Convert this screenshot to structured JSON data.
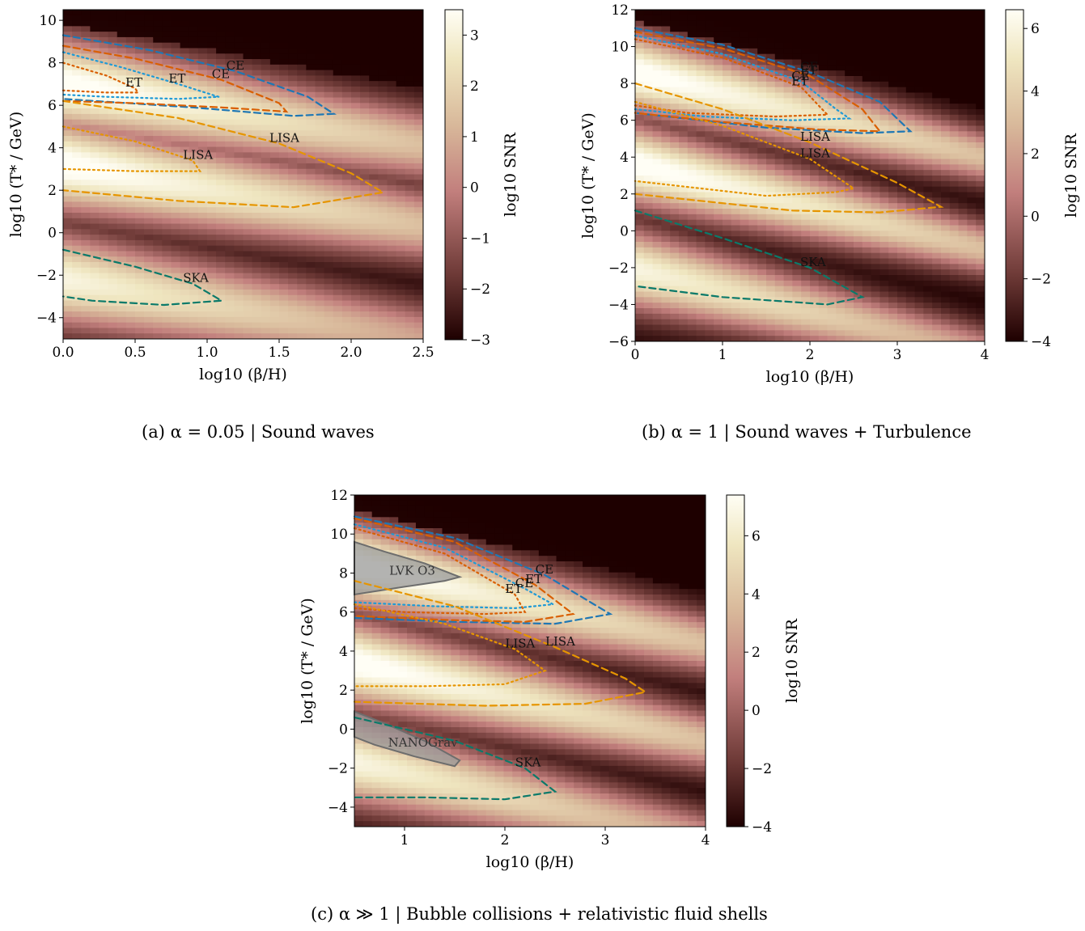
{
  "captions": [
    "(a) α = 0.05 | Sound waves",
    "(b) α = 1 | Sound waves + Turbulence",
    "(c) α ≫ 1 | Bubble collisions + relativistic fluid shells"
  ],
  "colors": {
    "CE": "#1f77b4",
    "ET": "#d95f02",
    "ET_dotted": "#1f9ad6",
    "LISA": "#e69500",
    "SKA": "#0b7a6a",
    "PTA": "#7f7f7f"
  },
  "chart_data": [
    {
      "type": "heatmap",
      "title": "",
      "xlabel": "log10 (β/H)",
      "ylabel": "log10 (T* / GeV)",
      "colorbar_label": "log10 SNR",
      "xlim": [
        0,
        2.5
      ],
      "ylim": [
        -5,
        10.5
      ],
      "xticks": [
        "0.0",
        "0.5",
        "1.0",
        "1.5",
        "2.0",
        "2.5"
      ],
      "yticks": [
        "−4",
        "−2",
        "0",
        "2",
        "4",
        "6",
        "8",
        "10"
      ],
      "clim": [
        -3,
        3.5
      ],
      "cbticks": [
        "−3",
        "−2",
        "−1",
        "0",
        "1",
        "2",
        "3"
      ],
      "band_centers": [
        7.0,
        3.2,
        -2.2
      ],
      "contours": [
        {
          "label": "CE",
          "style": "dashed",
          "color": "CE",
          "points": [
            [
              0,
              9.3
            ],
            [
              0.6,
              8.6
            ],
            [
              1.2,
              7.6
            ],
            [
              1.7,
              6.4
            ],
            [
              1.88,
              5.6
            ],
            [
              1.6,
              5.5
            ],
            [
              0.9,
              5.9
            ],
            [
              0,
              6.3
            ]
          ]
        },
        {
          "label": "CE",
          "style": "dashed",
          "color": "ET",
          "points": [
            [
              0,
              8.8
            ],
            [
              0.5,
              8.2
            ],
            [
              1.1,
              7.2
            ],
            [
              1.5,
              6.1
            ],
            [
              1.55,
              5.7
            ],
            [
              1.1,
              5.9
            ],
            [
              0.5,
              6.1
            ],
            [
              0,
              6.2
            ]
          ]
        },
        {
          "label": "ET",
          "style": "dotted",
          "color": "ET_dotted",
          "points": [
            [
              0,
              8.5
            ],
            [
              0.4,
              7.8
            ],
            [
              0.8,
              7.0
            ],
            [
              1.08,
              6.4
            ],
            [
              0.8,
              6.3
            ],
            [
              0.3,
              6.4
            ],
            [
              0,
              6.5
            ]
          ]
        },
        {
          "label": "ET",
          "style": "dotted",
          "color": "ET",
          "points": [
            [
              0,
              8.0
            ],
            [
              0.3,
              7.4
            ],
            [
              0.5,
              6.8
            ],
            [
              0.52,
              6.6
            ],
            [
              0.3,
              6.6
            ],
            [
              0,
              6.7
            ]
          ]
        },
        {
          "label": "LISA",
          "style": "dashed",
          "color": "LISA",
          "points": [
            [
              0,
              6.2
            ],
            [
              0.8,
              5.4
            ],
            [
              1.5,
              4.2
            ],
            [
              2.0,
              2.8
            ],
            [
              2.22,
              1.9
            ],
            [
              1.6,
              1.2
            ],
            [
              0.8,
              1.5
            ],
            [
              0,
              2.0
            ]
          ]
        },
        {
          "label": "LISA",
          "style": "dotted",
          "color": "LISA",
          "points": [
            [
              0,
              5.0
            ],
            [
              0.5,
              4.3
            ],
            [
              0.9,
              3.4
            ],
            [
              0.95,
              2.9
            ],
            [
              0.5,
              2.9
            ],
            [
              0,
              3.0
            ]
          ]
        },
        {
          "label": "SKA",
          "style": "dashed",
          "color": "SKA",
          "points": [
            [
              0,
              -0.8
            ],
            [
              0.5,
              -1.6
            ],
            [
              0.9,
              -2.4
            ],
            [
              1.1,
              -3.2
            ],
            [
              0.7,
              -3.4
            ],
            [
              0.2,
              -3.2
            ],
            [
              0,
              -3.0
            ]
          ]
        }
      ],
      "shaded_regions": []
    },
    {
      "type": "heatmap",
      "title": "",
      "xlabel": "log10 (β/H)",
      "ylabel": "log10 (T* / GeV)",
      "colorbar_label": "log10 SNR",
      "xlim": [
        0,
        4
      ],
      "ylim": [
        -6,
        12
      ],
      "xticks": [
        "0",
        "1",
        "2",
        "3",
        "4"
      ],
      "yticks": [
        "−6",
        "−4",
        "−2",
        "0",
        "2",
        "4",
        "6",
        "8",
        "10",
        "12"
      ],
      "clim": [
        -4,
        6.6
      ],
      "cbticks": [
        "−4",
        "−2",
        "0",
        "2",
        "4",
        "6"
      ],
      "band_centers": [
        8.6,
        3.6,
        -2.1
      ],
      "contours": [
        {
          "label": "CE",
          "style": "dashed",
          "color": "CE",
          "points": [
            [
              0,
              11.0
            ],
            [
              1,
              10.1
            ],
            [
              2,
              8.6
            ],
            [
              2.8,
              7.0
            ],
            [
              3.15,
              5.4
            ],
            [
              2.6,
              5.3
            ],
            [
              1.5,
              5.6
            ],
            [
              0,
              6.4
            ]
          ]
        },
        {
          "label": "ET",
          "style": "dashed",
          "color": "ET",
          "points": [
            [
              0,
              10.8
            ],
            [
              1,
              9.9
            ],
            [
              2,
              8.4
            ],
            [
              2.6,
              6.6
            ],
            [
              2.8,
              5.4
            ],
            [
              2.1,
              5.5
            ],
            [
              1,
              5.9
            ],
            [
              0,
              6.4
            ]
          ]
        },
        {
          "label": "CE",
          "style": "dotted",
          "color": "ET_dotted",
          "points": [
            [
              0,
              10.6
            ],
            [
              1,
              9.6
            ],
            [
              1.9,
              8.1
            ],
            [
              2.3,
              6.6
            ],
            [
              2.45,
              6.1
            ],
            [
              1.8,
              6.0
            ],
            [
              0.8,
              6.2
            ],
            [
              0,
              6.6
            ]
          ]
        },
        {
          "label": "ET",
          "style": "dotted",
          "color": "ET",
          "points": [
            [
              0,
              10.4
            ],
            [
              1,
              9.4
            ],
            [
              1.9,
              7.8
            ],
            [
              2.2,
              6.3
            ],
            [
              1.6,
              6.2
            ],
            [
              0.6,
              6.4
            ],
            [
              0,
              6.8
            ]
          ]
        },
        {
          "label": "LISA",
          "style": "dashed",
          "color": "LISA",
          "points": [
            [
              0,
              8.0
            ],
            [
              1,
              6.6
            ],
            [
              2,
              4.8
            ],
            [
              3,
              2.6
            ],
            [
              3.5,
              1.3
            ],
            [
              2.8,
              1.0
            ],
            [
              1.8,
              1.1
            ],
            [
              0,
              2.0
            ]
          ]
        },
        {
          "label": "LISA",
          "style": "dotted",
          "color": "LISA",
          "points": [
            [
              0,
              7.0
            ],
            [
              1,
              5.7
            ],
            [
              2,
              3.9
            ],
            [
              2.5,
              2.3
            ],
            [
              2.3,
              2.1
            ],
            [
              1.5,
              1.9
            ],
            [
              0,
              2.7
            ]
          ]
        },
        {
          "label": "SKA",
          "style": "dashed",
          "color": "SKA",
          "points": [
            [
              0,
              1.1
            ],
            [
              1,
              -0.4
            ],
            [
              2,
              -2.0
            ],
            [
              2.6,
              -3.6
            ],
            [
              2.2,
              -4.0
            ],
            [
              1.0,
              -3.6
            ],
            [
              0,
              -3.0
            ]
          ]
        }
      ],
      "shaded_regions": []
    },
    {
      "type": "heatmap",
      "title": "",
      "xlabel": "log10 (β/H)",
      "ylabel": "log10 (T* / GeV)",
      "colorbar_label": "log10 SNR",
      "xlim": [
        0.5,
        4
      ],
      "ylim": [
        -5,
        12
      ],
      "xticks": [
        "1",
        "2",
        "3",
        "4"
      ],
      "yticks": [
        "−4",
        "−2",
        "0",
        "2",
        "4",
        "6",
        "8",
        "10",
        "12"
      ],
      "clim": [
        -4,
        7.4
      ],
      "cbticks": [
        "−4",
        "−2",
        "0",
        "2",
        "4",
        "6"
      ],
      "band_centers": [
        8.4,
        3.4,
        -1.7
      ],
      "contours": [
        {
          "label": "CE",
          "style": "dashed",
          "color": "CE",
          "points": [
            [
              0.5,
              10.9
            ],
            [
              1.5,
              9.8
            ],
            [
              2.4,
              7.9
            ],
            [
              3.05,
              5.9
            ],
            [
              2.5,
              5.4
            ],
            [
              1.5,
              5.5
            ],
            [
              0.5,
              5.7
            ]
          ]
        },
        {
          "label": "ET",
          "style": "dashed",
          "color": "ET",
          "points": [
            [
              0.5,
              10.8
            ],
            [
              1.5,
              9.6
            ],
            [
              2.3,
              7.4
            ],
            [
              2.68,
              5.9
            ],
            [
              2.2,
              5.5
            ],
            [
              1.4,
              5.6
            ],
            [
              0.5,
              5.8
            ]
          ]
        },
        {
          "label": "CE",
          "style": "dotted",
          "color": "ET_dotted",
          "points": [
            [
              0.5,
              10.5
            ],
            [
              1.4,
              9.3
            ],
            [
              2.2,
              7.2
            ],
            [
              2.48,
              6.4
            ],
            [
              2.1,
              6.2
            ],
            [
              1.3,
              6.3
            ],
            [
              0.5,
              6.5
            ]
          ]
        },
        {
          "label": "ET",
          "style": "dotted",
          "color": "ET",
          "points": [
            [
              0.5,
              10.3
            ],
            [
              1.4,
              9.0
            ],
            [
              2.1,
              6.9
            ],
            [
              2.2,
              6.0
            ],
            [
              1.8,
              5.9
            ],
            [
              1.0,
              6.0
            ],
            [
              0.5,
              6.2
            ]
          ]
        },
        {
          "label": "LISA",
          "style": "dashed",
          "color": "LISA",
          "points": [
            [
              0.5,
              7.6
            ],
            [
              1.5,
              6.3
            ],
            [
              2.5,
              4.2
            ],
            [
              3.2,
              2.6
            ],
            [
              3.4,
              1.9
            ],
            [
              2.8,
              1.3
            ],
            [
              1.8,
              1.2
            ],
            [
              0.5,
              1.4
            ]
          ]
        },
        {
          "label": "LISA",
          "style": "dotted",
          "color": "LISA",
          "points": [
            [
              0.5,
              6.4
            ],
            [
              1.4,
              5.4
            ],
            [
              2.1,
              4.1
            ],
            [
              2.4,
              3.0
            ],
            [
              2.0,
              2.3
            ],
            [
              1.2,
              2.2
            ],
            [
              0.5,
              2.2
            ]
          ]
        },
        {
          "label": "SKA",
          "style": "dashed",
          "color": "SKA",
          "points": [
            [
              0.5,
              0.6
            ],
            [
              1.5,
              -0.6
            ],
            [
              2.2,
              -2.0
            ],
            [
              2.5,
              -3.2
            ],
            [
              2.0,
              -3.6
            ],
            [
              1.2,
              -3.5
            ],
            [
              0.5,
              -3.5
            ]
          ]
        }
      ],
      "shaded_regions": [
        {
          "label": "LVK O3",
          "points": [
            [
              0.5,
              9.6
            ],
            [
              0.8,
              9.1
            ],
            [
              1.2,
              8.5
            ],
            [
              1.55,
              7.8
            ],
            [
              1.4,
              7.6
            ],
            [
              1.0,
              7.3
            ],
            [
              0.5,
              6.9
            ]
          ]
        },
        {
          "label": "NANOGrav",
          "points": [
            [
              0.5,
              0.9
            ],
            [
              0.8,
              0.3
            ],
            [
              1.2,
              -0.6
            ],
            [
              1.55,
              -1.6
            ],
            [
              1.5,
              -1.9
            ],
            [
              1.1,
              -1.4
            ],
            [
              0.7,
              -0.8
            ],
            [
              0.5,
              -0.4
            ]
          ]
        }
      ]
    }
  ]
}
